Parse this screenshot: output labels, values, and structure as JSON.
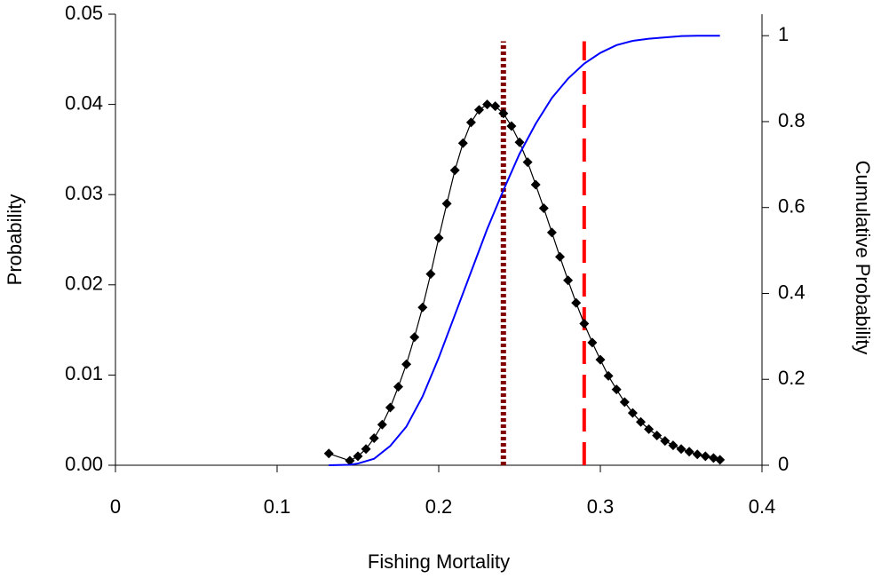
{
  "chart_data": {
    "type": "line",
    "xlabel": "Fishing Mortality",
    "ylabel": "Probability",
    "y2label": "Cumulative Probability",
    "xlim": [
      0,
      0.4
    ],
    "xticks": [
      0,
      0.1,
      0.2,
      0.3,
      0.4
    ],
    "ylim": [
      0,
      0.05
    ],
    "yticks": [
      {
        "value": 0,
        "label": "0.00"
      },
      {
        "value": 0.01,
        "label": "0.01"
      },
      {
        "value": 0.02,
        "label": "0.02"
      },
      {
        "value": 0.03,
        "label": "0.03"
      },
      {
        "value": 0.04,
        "label": "0.04"
      },
      {
        "value": 0.05,
        "label": "0.05"
      }
    ],
    "y2lim": [
      0,
      1.05
    ],
    "y2ticks": [
      0,
      0.2,
      0.4,
      0.6,
      0.8,
      1
    ],
    "series": [
      {
        "color": "#000000",
        "marker": "diamond",
        "x": [
          0.132,
          0.145,
          0.15,
          0.155,
          0.16,
          0.165,
          0.17,
          0.175,
          0.18,
          0.185,
          0.19,
          0.195,
          0.2,
          0.205,
          0.21,
          0.215,
          0.22,
          0.225,
          0.23,
          0.235,
          0.24,
          0.245,
          0.25,
          0.255,
          0.26,
          0.265,
          0.27,
          0.275,
          0.28,
          0.285,
          0.29,
          0.295,
          0.3,
          0.305,
          0.31,
          0.315,
          0.32,
          0.325,
          0.33,
          0.335,
          0.34,
          0.345,
          0.35,
          0.355,
          0.36,
          0.365,
          0.37,
          0.374
        ],
        "values": [
          0.0013,
          0.0005,
          0.001,
          0.0018,
          0.003,
          0.0045,
          0.0064,
          0.0087,
          0.0112,
          0.0142,
          0.0175,
          0.0212,
          0.0252,
          0.029,
          0.0327,
          0.0357,
          0.038,
          0.0394,
          0.04,
          0.0398,
          0.039,
          0.0376,
          0.0358,
          0.0336,
          0.0311,
          0.0285,
          0.0258,
          0.0231,
          0.0205,
          0.018,
          0.0157,
          0.0136,
          0.0117,
          0.0099,
          0.0084,
          0.007,
          0.0058,
          0.0048,
          0.004,
          0.0033,
          0.0027,
          0.0022,
          0.0018,
          0.0015,
          0.0012,
          0.001,
          0.0008,
          0.0006
        ]
      },
      {
        "color": "#0000ff",
        "axis": "y2",
        "x": [
          0.132,
          0.145,
          0.15,
          0.16,
          0.17,
          0.18,
          0.19,
          0.2,
          0.21,
          0.22,
          0.23,
          0.24,
          0.25,
          0.26,
          0.27,
          0.28,
          0.29,
          0.3,
          0.31,
          0.32,
          0.33,
          0.34,
          0.35,
          0.36,
          0.374
        ],
        "values": [
          0,
          0.001,
          0.004,
          0.015,
          0.045,
          0.09,
          0.16,
          0.25,
          0.35,
          0.45,
          0.55,
          0.64,
          0.725,
          0.795,
          0.855,
          0.9,
          0.935,
          0.96,
          0.978,
          0.988,
          0.993,
          0.996,
          0.999,
          1,
          1
        ]
      }
    ],
    "reference_lines": [
      {
        "x": 0.24,
        "y": [
          0,
          0.047
        ],
        "color": "#800000",
        "style": "dotted"
      },
      {
        "x": 0.29,
        "y": [
          0,
          0.047
        ],
        "color": "#ff0000",
        "style": "dashed"
      }
    ]
  }
}
